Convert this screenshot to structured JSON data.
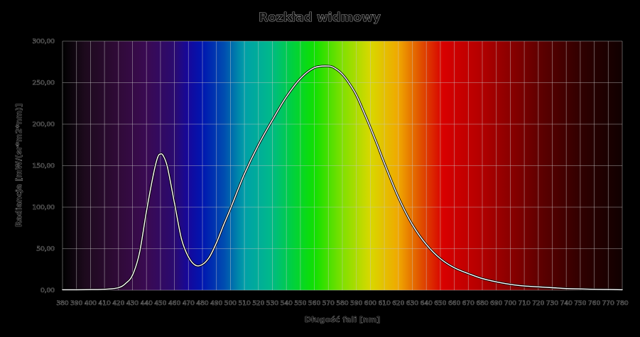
{
  "chart_data": {
    "type": "line",
    "title": "Rozkład widmowy",
    "xlabel": "Długość fali [nm]",
    "ylabel": "Radiancja [mW/(sr*m2*nm)]",
    "xlim": [
      380,
      780
    ],
    "ylim": [
      0,
      300
    ],
    "grid": true,
    "legend": "none",
    "x_ticks": [
      "380",
      "390",
      "400",
      "410",
      "420",
      "430",
      "440",
      "450",
      "460",
      "470",
      "480",
      "490",
      "500",
      "510",
      "520",
      "530",
      "540",
      "550",
      "560",
      "570",
      "580",
      "590",
      "600",
      "610",
      "620",
      "630",
      "640",
      "650",
      "660",
      "670",
      "680",
      "690",
      "700",
      "710",
      "720",
      "730",
      "740",
      "750",
      "760",
      "770",
      "780"
    ],
    "y_ticks": [
      "0,00",
      "50,00",
      "100,00",
      "150,00",
      "200,00",
      "250,00",
      "300,00"
    ],
    "series": [
      {
        "color": "#ffffff",
        "x": [
          380,
          390,
          400,
          410,
          420,
          425,
          430,
          435,
          440,
          445,
          448,
          450,
          452,
          455,
          460,
          465,
          470,
          475,
          480,
          485,
          490,
          495,
          500,
          510,
          520,
          530,
          540,
          550,
          560,
          570,
          575,
          580,
          585,
          590,
          595,
          600,
          605,
          610,
          620,
          630,
          640,
          650,
          660,
          670,
          680,
          690,
          700,
          710,
          720,
          730,
          740,
          750,
          760,
          770,
          780
        ],
        "y": [
          0.5,
          0.5,
          0.7,
          1,
          3,
          8,
          18,
          45,
          95,
          140,
          160,
          164,
          162,
          148,
          105,
          62,
          40,
          30,
          31,
          40,
          57,
          78,
          98,
          140,
          175,
          205,
          233,
          255,
          268,
          270,
          267,
          260,
          249,
          235,
          216,
          196,
          175,
          153,
          112,
          79,
          55,
          38,
          27,
          20,
          14,
          10,
          7,
          5,
          4,
          3,
          2,
          1.5,
          1,
          0.8,
          0.5
        ]
      }
    ]
  }
}
